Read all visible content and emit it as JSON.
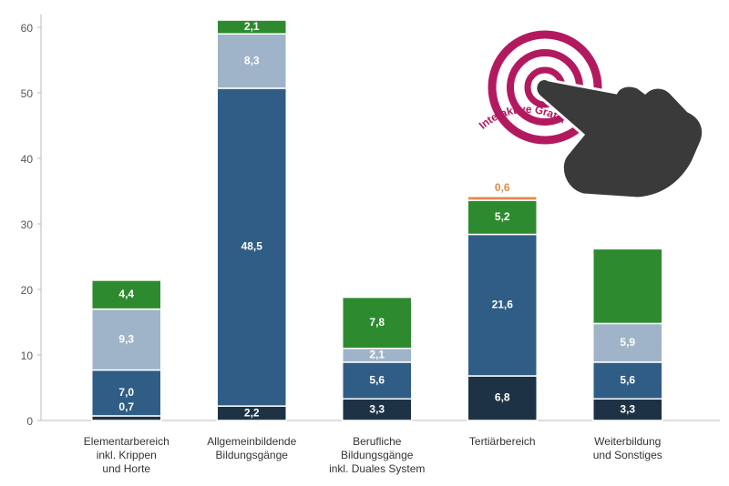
{
  "chart_data": {
    "type": "stacked-bar",
    "categories": [
      [
        "Elementarbereich",
        "inkl. Krippen",
        "und Horte"
      ],
      [
        "Allgemeinbildende",
        "Bildungsgänge"
      ],
      [
        "Berufliche",
        "Bildungsgänge",
        "inkl. Duales System"
      ],
      [
        "Tertiärbereich"
      ],
      [
        "Weiterbildung",
        "und Sonstiges"
      ]
    ],
    "series": [
      {
        "color": "#1d3345",
        "values": [
          0.7,
          2.2,
          3.3,
          6.8,
          3.3
        ],
        "value_labels": [
          "0,7",
          "2,2",
          "3,3",
          "6,8",
          "3,3"
        ]
      },
      {
        "color": "#2f5d85",
        "values": [
          7.0,
          48.5,
          5.6,
          21.6,
          5.6
        ],
        "value_labels": [
          "7,0",
          "48,5",
          "5,6",
          "21,6",
          "5,6"
        ]
      },
      {
        "color": "#9fb4c8",
        "values": [
          9.3,
          8.3,
          2.1,
          null,
          5.9
        ],
        "value_labels": [
          "9,3",
          "8,3",
          "2,1",
          null,
          "5,9"
        ]
      },
      {
        "color": "#2e8a2f",
        "values": [
          4.4,
          2.1,
          7.8,
          5.2,
          11.4
        ],
        "value_labels": [
          "4,4",
          "2,1",
          "7,8",
          "5,2",
          null
        ]
      },
      {
        "color": "#e08a4a",
        "values": [
          null,
          null,
          null,
          0.6,
          null
        ],
        "value_labels": [
          null,
          null,
          null,
          "0,6",
          null
        ]
      }
    ],
    "ylim": [
      0,
      62
    ],
    "yticks": [
      0,
      10,
      20,
      30,
      40,
      50,
      60
    ],
    "grid": false
  },
  "overlay": {
    "label": "Interaktive Grafik"
  }
}
